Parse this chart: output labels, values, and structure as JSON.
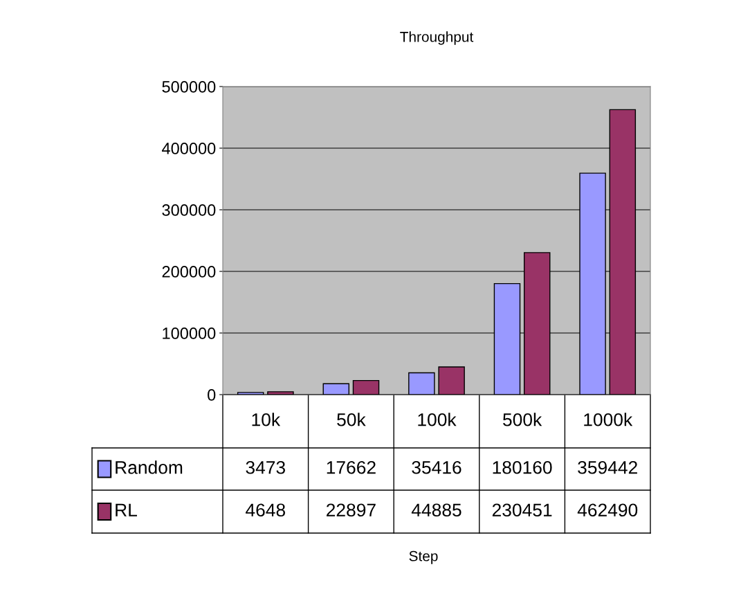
{
  "chart_data": {
    "type": "bar",
    "title": "Throughput",
    "annotations": [
      "Step"
    ],
    "categories": [
      "10k",
      "50k",
      "100k",
      "500k",
      "1000k"
    ],
    "series": [
      {
        "name": "Random",
        "color": "#9999ff",
        "values": [
          3473,
          17662,
          35416,
          180160,
          359442
        ]
      },
      {
        "name": "RL",
        "color": "#993366",
        "values": [
          4648,
          22897,
          44885,
          230451,
          462490
        ]
      }
    ],
    "ylim": [
      0,
      500000
    ],
    "yticks": [
      0,
      100000,
      200000,
      300000,
      400000,
      500000
    ],
    "grid": "y",
    "legend": "bottom left",
    "data_labels": true
  }
}
